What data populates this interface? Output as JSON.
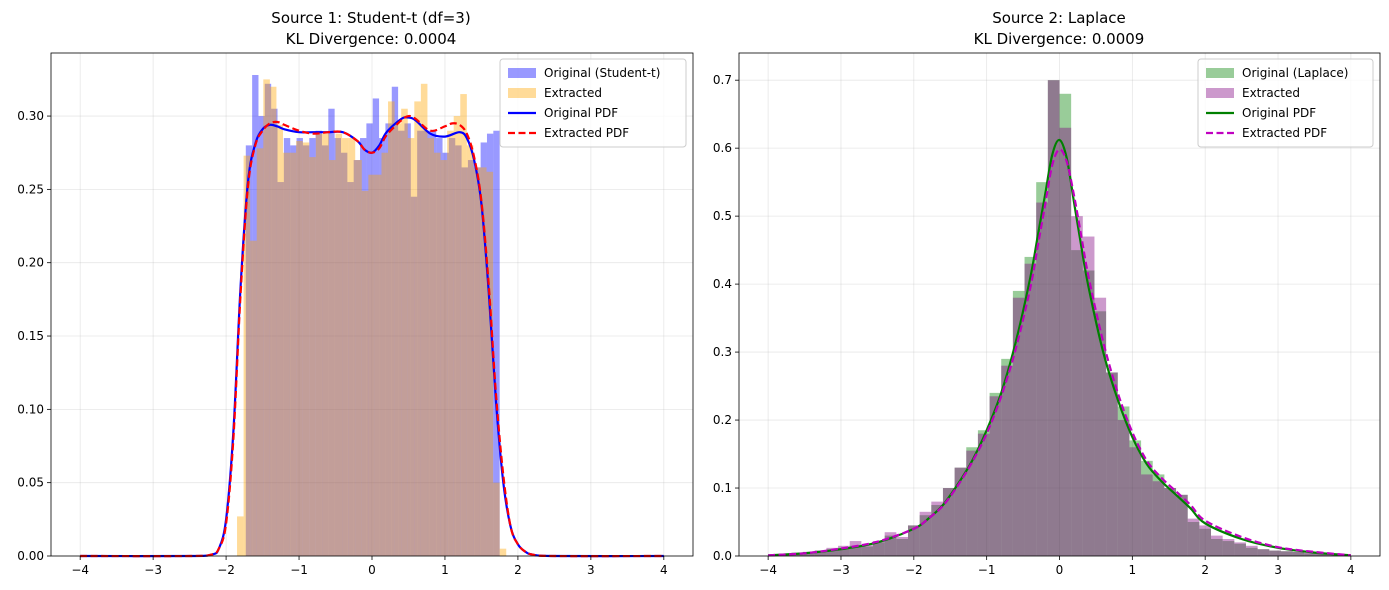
{
  "chart_data": [
    {
      "type": "bar",
      "title_line1": "Source 1: Student-t (df=3)",
      "title_line2": "KL Divergence: 0.0004",
      "xlim": [
        -4.4,
        4.4
      ],
      "ylim": [
        0,
        0.343
      ],
      "xticks": [
        -4,
        -3,
        -2,
        -1,
        0,
        1,
        2,
        3,
        4
      ],
      "xtick_labels": [
        "−4",
        "−3",
        "−2",
        "−1",
        "0",
        "1",
        "2",
        "3",
        "4"
      ],
      "yticks": [
        0.0,
        0.05,
        0.1,
        0.15,
        0.2,
        0.25,
        0.3
      ],
      "ytick_labels": [
        "0.00",
        "0.05",
        "0.10",
        "0.15",
        "0.20",
        "0.25",
        "0.30"
      ],
      "grid": true,
      "legend_position": "upper right",
      "histograms": [
        {
          "name": "Original (Student-t)",
          "color": "#0000ff",
          "opacity": 0.4,
          "bin_edges": [
            -1.73,
            -1.643,
            -1.556,
            -1.469,
            -1.382,
            -1.295,
            -1.208,
            -1.121,
            -1.034,
            -0.947,
            -0.86,
            -0.773,
            -0.686,
            -0.599,
            -0.512,
            -0.425,
            -0.338,
            -0.251,
            -0.164,
            -0.077,
            0.01,
            0.097,
            0.184,
            0.271,
            0.358,
            0.445,
            0.532,
            0.619,
            0.706,
            0.793,
            0.88,
            0.967,
            1.054,
            1.141,
            1.228,
            1.315,
            1.402,
            1.489,
            1.576,
            1.663,
            1.75
          ],
          "values": [
            0.28,
            0.328,
            0.3,
            0.322,
            0.305,
            0.255,
            0.285,
            0.28,
            0.285,
            0.28,
            0.285,
            0.29,
            0.28,
            0.305,
            0.285,
            0.275,
            0.255,
            0.27,
            0.285,
            0.295,
            0.312,
            0.285,
            0.295,
            0.32,
            0.29,
            0.295,
            0.245,
            0.29,
            0.29,
            0.29,
            0.285,
            0.275,
            0.285,
            0.28,
            0.265,
            0.27,
            0.265,
            0.282,
            0.288,
            0.29
          ]
        },
        {
          "name": "Extracted",
          "color": "#ffa500",
          "opacity": 0.4,
          "bin_edges": [
            -1.85,
            -1.76,
            -1.67,
            -1.58,
            -1.49,
            -1.4,
            -1.31,
            -1.22,
            -1.13,
            -1.04,
            -0.95,
            -0.86,
            -0.77,
            -0.68,
            -0.59,
            -0.5,
            -0.41,
            -0.32,
            -0.23,
            -0.14,
            -0.05,
            0.04,
            0.13,
            0.22,
            0.31,
            0.4,
            0.49,
            0.58,
            0.67,
            0.76,
            0.85,
            0.94,
            1.03,
            1.12,
            1.21,
            1.3,
            1.39,
            1.48,
            1.57,
            1.66,
            1.75,
            1.84
          ],
          "values": [
            0.027,
            0.273,
            0.215,
            0.278,
            0.325,
            0.32,
            0.294,
            0.275,
            0.275,
            0.283,
            0.282,
            0.272,
            0.288,
            0.288,
            0.27,
            0.288,
            0.285,
            0.285,
            0.27,
            0.249,
            0.26,
            0.26,
            0.275,
            0.31,
            0.295,
            0.305,
            0.285,
            0.31,
            0.322,
            0.285,
            0.275,
            0.27,
            0.29,
            0.3,
            0.315,
            0.28,
            0.265,
            0.265,
            0.262,
            0.05,
            0.005
          ]
        }
      ],
      "lines": [
        {
          "name": "Original PDF",
          "color": "#0000ff",
          "dashed": false,
          "x": [
            -4.0,
            -2.5,
            -2.2,
            -2.1,
            -2.0,
            -1.9,
            -1.8,
            -1.7,
            -1.6,
            -1.5,
            -1.4,
            -1.3,
            -1.2,
            -1.0,
            -0.8,
            -0.6,
            -0.4,
            -0.2,
            -0.1,
            0.0,
            0.1,
            0.2,
            0.4,
            0.5,
            0.6,
            0.8,
            1.0,
            1.2,
            1.3,
            1.4,
            1.5,
            1.6,
            1.7,
            1.8,
            1.9,
            2.0,
            2.1,
            2.2,
            2.5,
            4.0
          ],
          "y": [
            0.0,
            0.0,
            0.001,
            0.005,
            0.025,
            0.085,
            0.185,
            0.255,
            0.281,
            0.291,
            0.294,
            0.293,
            0.291,
            0.289,
            0.289,
            0.289,
            0.289,
            0.283,
            0.277,
            0.275,
            0.28,
            0.289,
            0.298,
            0.299,
            0.297,
            0.288,
            0.286,
            0.289,
            0.285,
            0.27,
            0.24,
            0.18,
            0.105,
            0.05,
            0.02,
            0.008,
            0.003,
            0.001,
            0.0,
            0.0
          ]
        },
        {
          "name": "Extracted PDF",
          "color": "#ff0000",
          "dashed": true,
          "x": [
            -4.0,
            -2.5,
            -2.2,
            -2.1,
            -2.0,
            -1.9,
            -1.8,
            -1.7,
            -1.6,
            -1.5,
            -1.4,
            -1.3,
            -1.2,
            -1.0,
            -0.8,
            -0.6,
            -0.4,
            -0.2,
            -0.1,
            0.0,
            0.1,
            0.2,
            0.4,
            0.5,
            0.6,
            0.8,
            1.0,
            1.1,
            1.2,
            1.3,
            1.4,
            1.5,
            1.6,
            1.7,
            1.8,
            1.9,
            2.0,
            2.1,
            2.2,
            2.5,
            4.0
          ],
          "y": [
            0.0,
            0.0,
            0.001,
            0.005,
            0.022,
            0.08,
            0.18,
            0.252,
            0.28,
            0.29,
            0.295,
            0.296,
            0.294,
            0.29,
            0.288,
            0.289,
            0.289,
            0.283,
            0.277,
            0.275,
            0.278,
            0.287,
            0.297,
            0.3,
            0.298,
            0.29,
            0.293,
            0.295,
            0.294,
            0.288,
            0.272,
            0.242,
            0.185,
            0.11,
            0.055,
            0.02,
            0.008,
            0.003,
            0.001,
            0.0,
            0.0
          ]
        }
      ]
    },
    {
      "type": "bar",
      "title_line1": "Source 2: Laplace",
      "title_line2": "KL Divergence: 0.0009",
      "xlim": [
        -4.4,
        4.4
      ],
      "ylim": [
        0,
        0.74
      ],
      "xticks": [
        -4,
        -3,
        -2,
        -1,
        0,
        1,
        2,
        3,
        4
      ],
      "xtick_labels": [
        "−4",
        "−3",
        "−2",
        "−1",
        "0",
        "1",
        "2",
        "3",
        "4"
      ],
      "yticks": [
        0.0,
        0.1,
        0.2,
        0.3,
        0.4,
        0.5,
        0.6,
        0.7
      ],
      "ytick_labels": [
        "0.0",
        "0.1",
        "0.2",
        "0.3",
        "0.4",
        "0.5",
        "0.6",
        "0.7"
      ],
      "grid": true,
      "legend_position": "upper right",
      "histograms": [
        {
          "name": "Original (Laplace)",
          "color": "#008000",
          "opacity": 0.4,
          "bin_edges": [
            -4.0,
            -3.84,
            -3.68,
            -3.52,
            -3.36,
            -3.2,
            -3.04,
            -2.88,
            -2.72,
            -2.56,
            -2.4,
            -2.24,
            -2.08,
            -1.92,
            -1.76,
            -1.6,
            -1.44,
            -1.28,
            -1.12,
            -0.96,
            -0.8,
            -0.64,
            -0.48,
            -0.32,
            -0.16,
            0.0,
            0.16,
            0.32,
            0.48,
            0.64,
            0.8,
            0.96,
            1.12,
            1.28,
            1.44,
            1.6,
            1.76,
            1.92,
            2.08,
            2.24,
            2.4,
            2.56,
            2.72,
            2.88,
            3.04,
            3.2,
            3.36,
            3.52,
            3.68,
            3.84,
            4.0
          ],
          "values": [
            0.002,
            0.003,
            0.004,
            0.006,
            0.008,
            0.01,
            0.012,
            0.015,
            0.014,
            0.02,
            0.03,
            0.025,
            0.045,
            0.06,
            0.075,
            0.1,
            0.13,
            0.16,
            0.185,
            0.24,
            0.29,
            0.39,
            0.44,
            0.55,
            0.7,
            0.68,
            0.45,
            0.42,
            0.36,
            0.27,
            0.22,
            0.17,
            0.14,
            0.12,
            0.1,
            0.09,
            0.05,
            0.04,
            0.025,
            0.022,
            0.018,
            0.012,
            0.01,
            0.008,
            0.007,
            0.006,
            0.004,
            0.003,
            0.002,
            0.001
          ]
        },
        {
          "name": "Extracted",
          "color": "#800080",
          "opacity": 0.4,
          "bin_edges": [
            -4.0,
            -3.84,
            -3.68,
            -3.52,
            -3.36,
            -3.2,
            -3.04,
            -2.88,
            -2.72,
            -2.56,
            -2.4,
            -2.24,
            -2.08,
            -1.92,
            -1.76,
            -1.6,
            -1.44,
            -1.28,
            -1.12,
            -0.96,
            -0.8,
            -0.64,
            -0.48,
            -0.32,
            -0.16,
            0.0,
            0.16,
            0.32,
            0.48,
            0.64,
            0.8,
            0.96,
            1.12,
            1.28,
            1.44,
            1.6,
            1.76,
            1.92,
            2.08,
            2.24,
            2.4,
            2.56,
            2.72,
            2.88,
            3.04,
            3.2,
            3.36,
            3.52,
            3.68,
            3.84,
            4.0
          ],
          "values": [
            0.002,
            0.003,
            0.005,
            0.006,
            0.008,
            0.012,
            0.015,
            0.022,
            0.016,
            0.022,
            0.035,
            0.028,
            0.045,
            0.065,
            0.08,
            0.1,
            0.13,
            0.155,
            0.18,
            0.235,
            0.28,
            0.38,
            0.43,
            0.52,
            0.7,
            0.63,
            0.5,
            0.47,
            0.38,
            0.27,
            0.2,
            0.16,
            0.12,
            0.11,
            0.1,
            0.09,
            0.055,
            0.045,
            0.03,
            0.025,
            0.02,
            0.015,
            0.01,
            0.008,
            0.007,
            0.006,
            0.005,
            0.004,
            0.002,
            0.001
          ]
        }
      ],
      "lines": [
        {
          "name": "Original PDF",
          "color": "#008000",
          "dashed": false,
          "x": [
            -4.0,
            -3.5,
            -3.0,
            -2.5,
            -2.0,
            -1.8,
            -1.6,
            -1.4,
            -1.2,
            -1.0,
            -0.8,
            -0.6,
            -0.4,
            -0.3,
            -0.2,
            -0.1,
            0.0,
            0.1,
            0.2,
            0.3,
            0.4,
            0.6,
            0.8,
            1.0,
            1.2,
            1.4,
            1.6,
            1.8,
            2.0,
            2.5,
            3.0,
            3.5,
            4.0
          ],
          "y": [
            0.001,
            0.004,
            0.01,
            0.02,
            0.04,
            0.055,
            0.075,
            0.105,
            0.14,
            0.185,
            0.24,
            0.315,
            0.41,
            0.47,
            0.53,
            0.59,
            0.612,
            0.585,
            0.52,
            0.455,
            0.395,
            0.3,
            0.23,
            0.175,
            0.135,
            0.11,
            0.09,
            0.07,
            0.048,
            0.025,
            0.012,
            0.005,
            0.001
          ]
        },
        {
          "name": "Extracted PDF",
          "color": "#c000c0",
          "dashed": true,
          "x": [
            -4.0,
            -3.5,
            -3.0,
            -2.5,
            -2.0,
            -1.8,
            -1.6,
            -1.4,
            -1.2,
            -1.0,
            -0.8,
            -0.6,
            -0.4,
            -0.3,
            -0.2,
            -0.1,
            0.0,
            0.1,
            0.2,
            0.3,
            0.4,
            0.6,
            0.8,
            1.0,
            1.2,
            1.4,
            1.6,
            1.8,
            2.0,
            2.5,
            3.0,
            3.5,
            4.0
          ],
          "y": [
            0.001,
            0.004,
            0.011,
            0.021,
            0.04,
            0.055,
            0.074,
            0.103,
            0.138,
            0.18,
            0.235,
            0.305,
            0.395,
            0.455,
            0.515,
            0.575,
            0.598,
            0.58,
            0.53,
            0.47,
            0.41,
            0.315,
            0.24,
            0.182,
            0.14,
            0.115,
            0.095,
            0.075,
            0.052,
            0.028,
            0.013,
            0.006,
            0.001
          ]
        }
      ]
    }
  ]
}
